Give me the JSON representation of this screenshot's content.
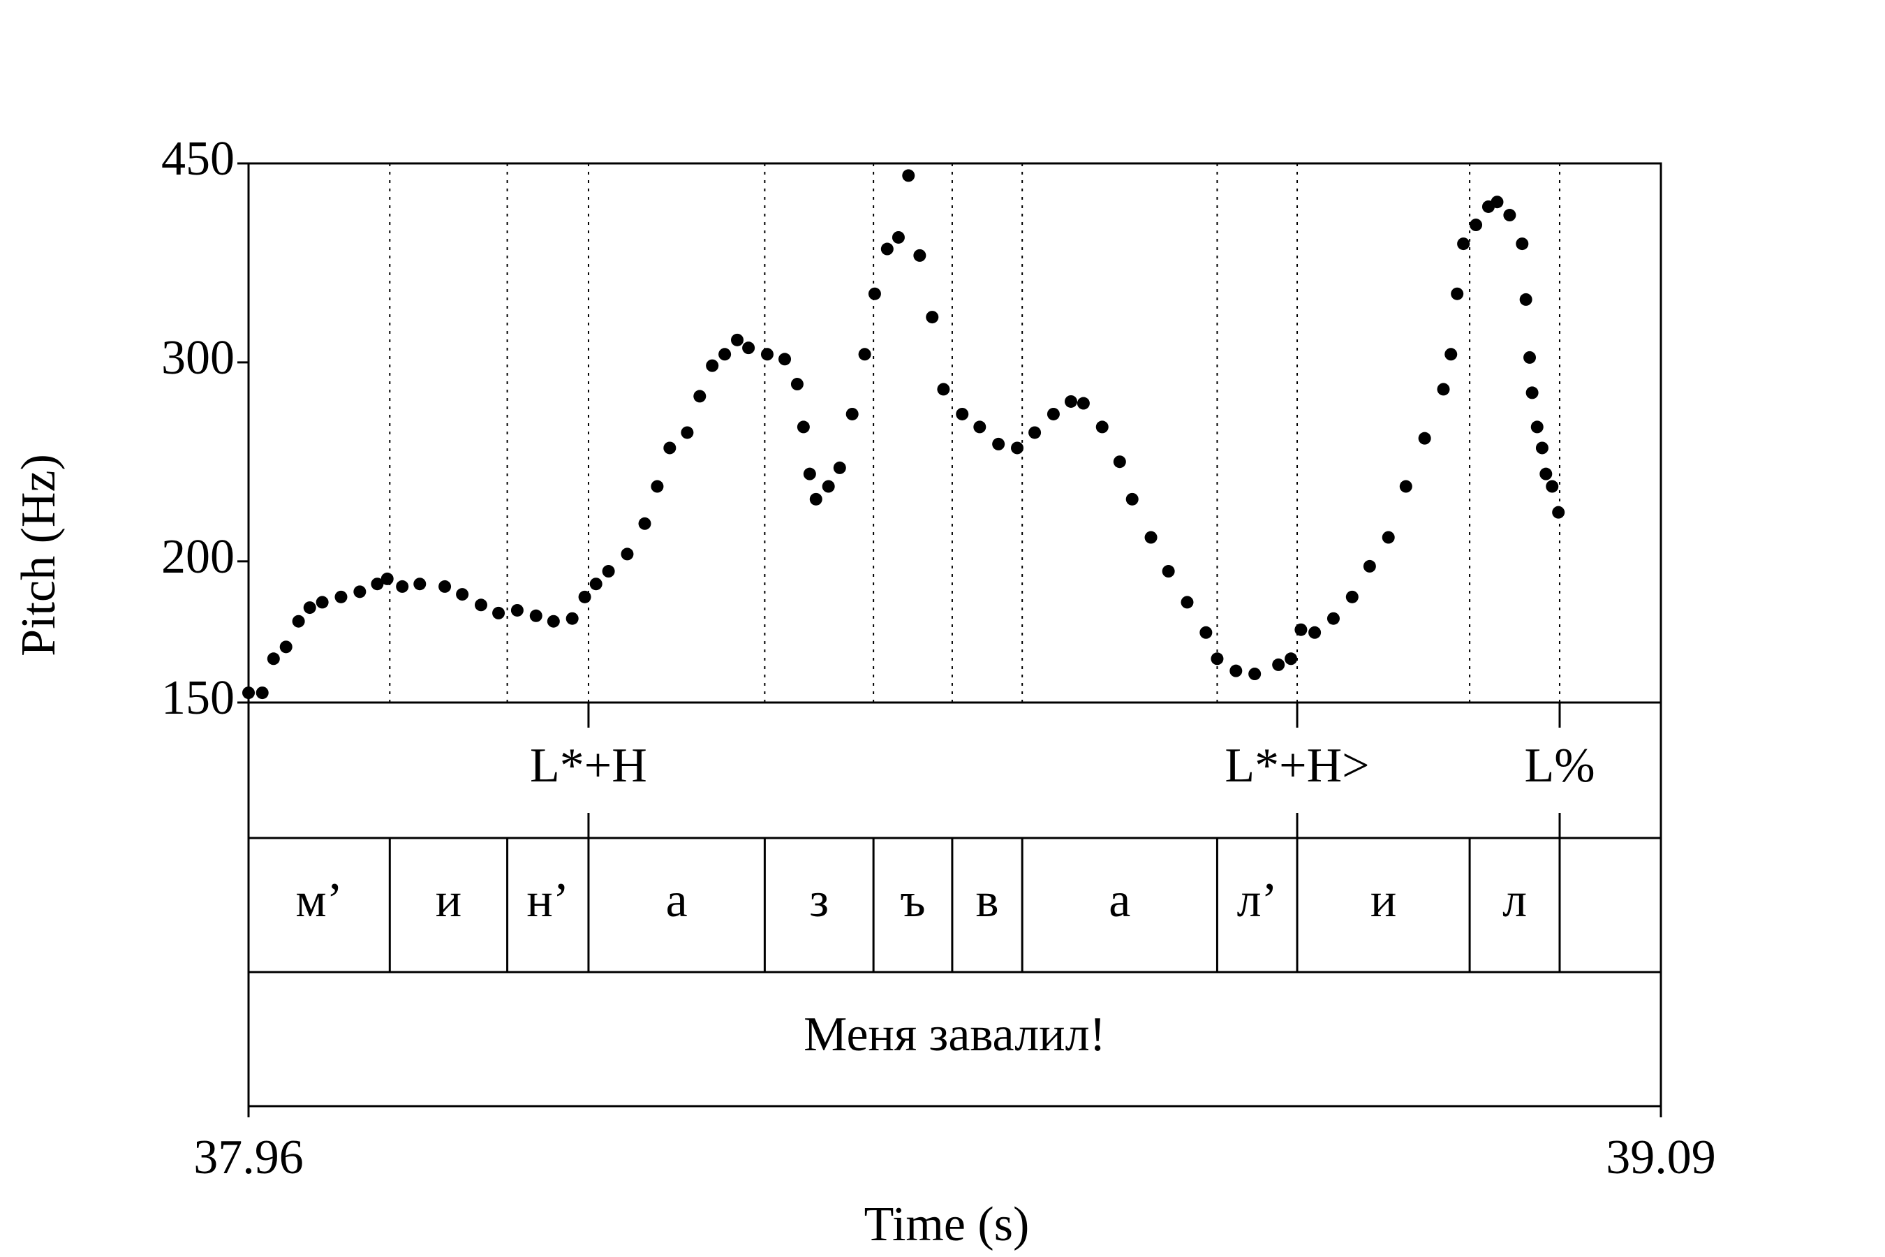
{
  "chart_data": {
    "type": "scatter",
    "log_scale_y": true,
    "color": "#000000",
    "xlabel": "Time (s)",
    "ylabel": "Pitch (Hz)",
    "xlim": [
      37.96,
      39.09
    ],
    "xticks": [
      37.96,
      39.09
    ],
    "ylim": [
      150,
      450
    ],
    "yticks": [
      150,
      200,
      300,
      450
    ],
    "x": [
      37.96,
      37.971,
      37.98,
      37.99,
      38.0,
      38.009,
      38.019,
      38.034,
      38.049,
      38.063,
      38.071,
      38.083,
      38.097,
      38.117,
      38.131,
      38.146,
      38.16,
      38.175,
      38.19,
      38.204,
      38.219,
      38.229,
      38.238,
      38.248,
      38.263,
      38.277,
      38.287,
      38.297,
      38.311,
      38.321,
      38.331,
      38.341,
      38.351,
      38.36,
      38.375,
      38.389,
      38.399,
      38.404,
      38.409,
      38.414,
      38.424,
      38.433,
      38.443,
      38.453,
      38.461,
      38.471,
      38.48,
      38.488,
      38.497,
      38.507,
      38.516,
      38.531,
      38.545,
      38.56,
      38.575,
      38.589,
      38.604,
      38.618,
      38.628,
      38.643,
      38.657,
      38.667,
      38.682,
      38.696,
      38.711,
      38.726,
      38.735,
      38.75,
      38.765,
      38.784,
      38.794,
      38.802,
      38.813,
      38.828,
      38.843,
      38.857,
      38.872,
      38.886,
      38.901,
      38.916,
      38.922,
      38.927,
      38.932,
      38.942,
      38.952,
      38.959,
      38.969,
      38.979,
      38.982,
      38.985,
      38.987,
      38.991,
      38.995,
      38.998,
      39.003,
      39.008
    ],
    "values": [
      153,
      153,
      164,
      168,
      177,
      182,
      184,
      186,
      188,
      191,
      193,
      190,
      191,
      190,
      187,
      183,
      180,
      181,
      179,
      177,
      178,
      186,
      191,
      196,
      203,
      216,
      233,
      252,
      260,
      280,
      298,
      305,
      314,
      309,
      305,
      302,
      287,
      263,
      239,
      227,
      233,
      242,
      270,
      305,
      345,
      378,
      387,
      439,
      373,
      329,
      284,
      270,
      263,
      254,
      252,
      260,
      270,
      277,
      276,
      263,
      245,
      227,
      210,
      196,
      184,
      173,
      164,
      160,
      159,
      162,
      164,
      174,
      173,
      178,
      186,
      198,
      210,
      233,
      257,
      284,
      305,
      345,
      382,
      397,
      412,
      416,
      405,
      382,
      341,
      303,
      282,
      263,
      252,
      239,
      233,
      221
    ],
    "tones": {
      "times": [
        38.232,
        38.799,
        39.009
      ],
      "labels": [
        "L*+H",
        "L*+H>",
        "L%"
      ]
    },
    "segments": {
      "bounds": [
        38.073,
        38.167,
        38.232,
        38.373,
        38.46,
        38.523,
        38.579,
        38.735,
        38.799,
        38.937,
        39.009
      ],
      "labels": [
        "м’",
        "и",
        "н’",
        "а",
        "з",
        "ъ",
        "в",
        "а",
        "л’",
        "и",
        "л",
        null
      ]
    },
    "words": {
      "labels": [
        "Меня завалил!"
      ]
    }
  }
}
